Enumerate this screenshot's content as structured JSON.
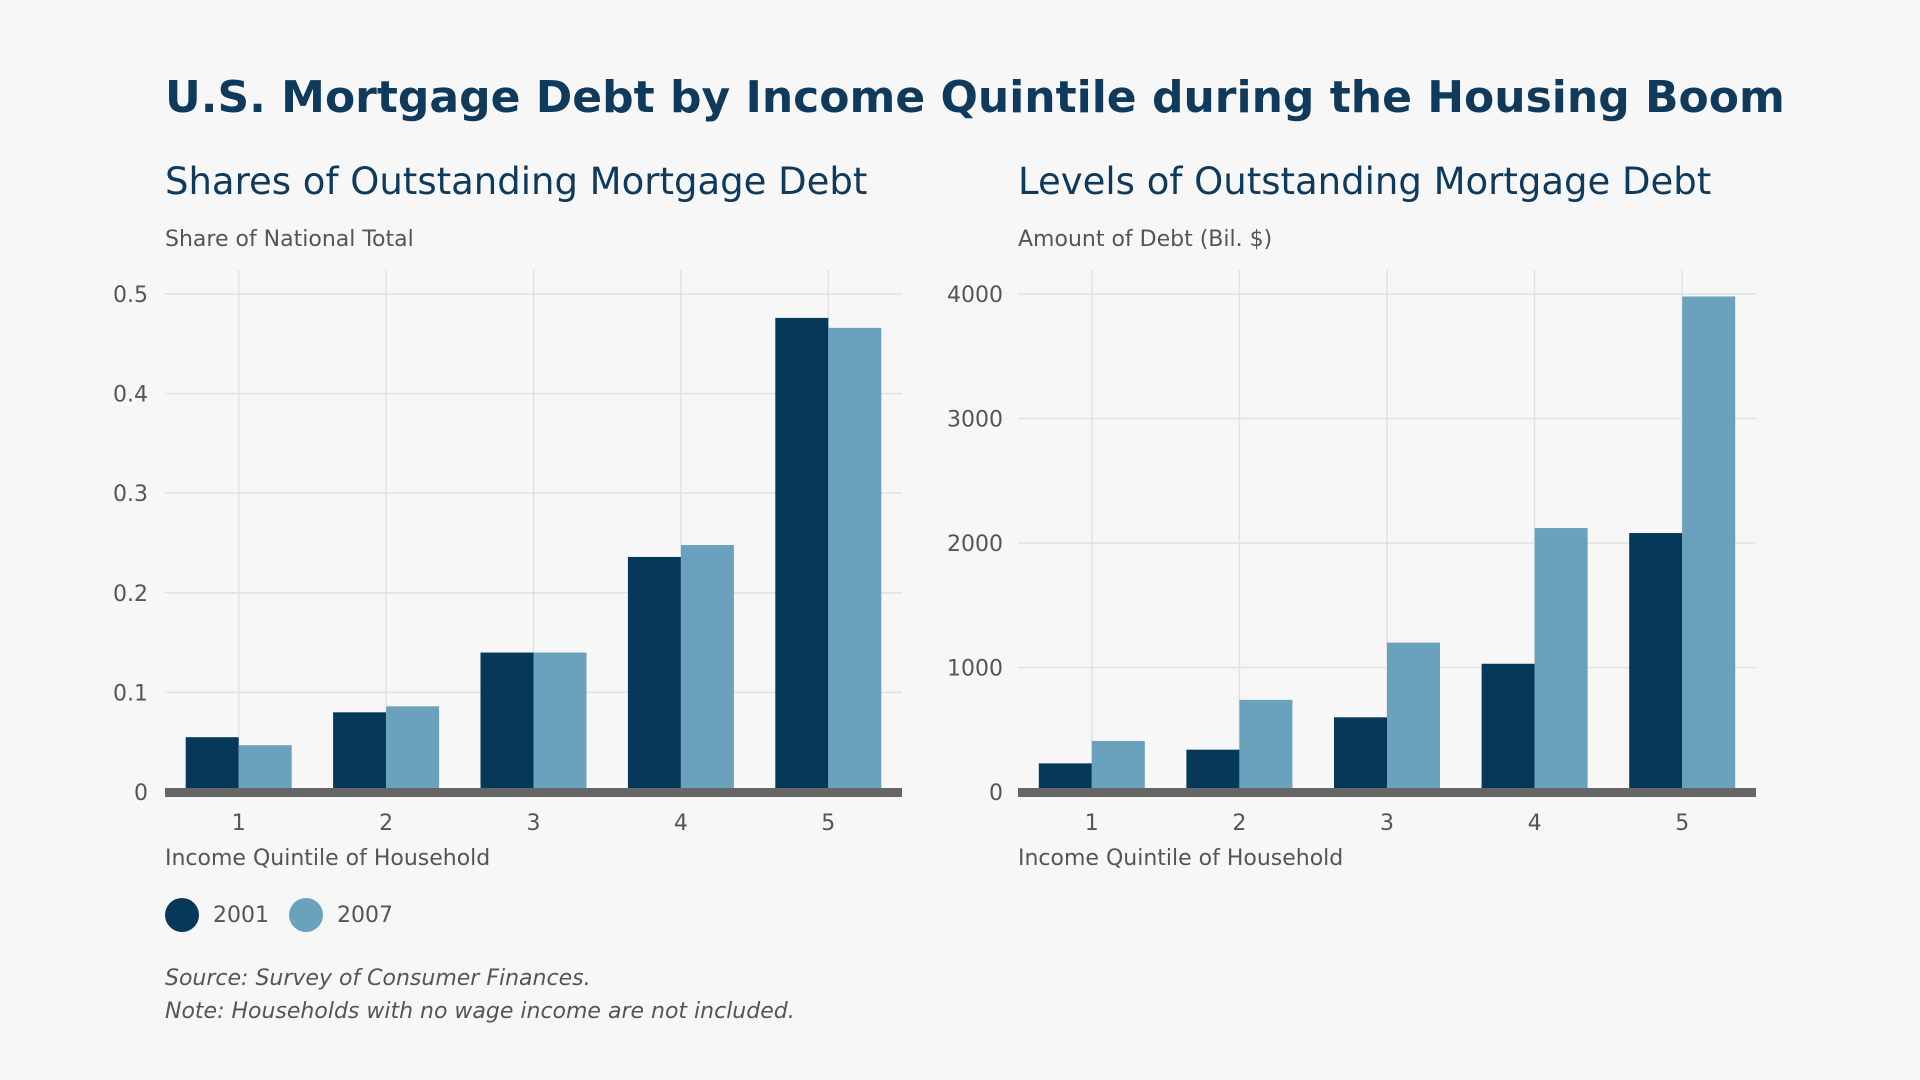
{
  "title": "U.S. Mortgage Debt by Income Quintile during the Housing Boom",
  "colors": {
    "series_2001": "#06385a",
    "series_2007": "#6aa1bc",
    "baseline": "#666666",
    "grid": "#e2e2e2"
  },
  "legend": {
    "items": [
      {
        "label": "2001"
      },
      {
        "label": "2007"
      }
    ],
    "placement": "bottom-left"
  },
  "notes": {
    "source": "Source: Survey of Consumer Finances.",
    "note": "Note: Households with no wage income are not included."
  },
  "chart_data": [
    {
      "type": "bar",
      "title": "Shares of Outstanding Mortgage Debt",
      "ylabel": "Share of National Total",
      "xlabel": "Income Quintile of Household",
      "categories": [
        "1",
        "2",
        "3",
        "4",
        "5"
      ],
      "ylim": [
        0,
        0.5
      ],
      "yticks": [
        0,
        0.1,
        0.2,
        0.3,
        0.4,
        0.5
      ],
      "ytick_labels": [
        "0",
        "0.1",
        "0.2",
        "0.3",
        "0.4",
        "0.5"
      ],
      "grid": true,
      "series": [
        {
          "name": "2001",
          "values": [
            0.055,
            0.08,
            0.14,
            0.236,
            0.476
          ]
        },
        {
          "name": "2007",
          "values": [
            0.047,
            0.086,
            0.14,
            0.248,
            0.466
          ]
        }
      ]
    },
    {
      "type": "bar",
      "title": "Levels of Outstanding Mortgage Debt",
      "ylabel": "Amount of Debt (Bil. $)",
      "xlabel": "Income Quintile of Household",
      "categories": [
        "1",
        "2",
        "3",
        "4",
        "5"
      ],
      "ylim": [
        0,
        4000
      ],
      "yticks": [
        0,
        1000,
        2000,
        3000,
        4000
      ],
      "ytick_labels": [
        "0",
        "1000",
        "2000",
        "3000",
        "4000"
      ],
      "grid": true,
      "series": [
        {
          "name": "2001",
          "values": [
            230,
            340,
            600,
            1030,
            2080
          ]
        },
        {
          "name": "2007",
          "values": [
            410,
            740,
            1200,
            2120,
            3980
          ]
        }
      ]
    }
  ]
}
